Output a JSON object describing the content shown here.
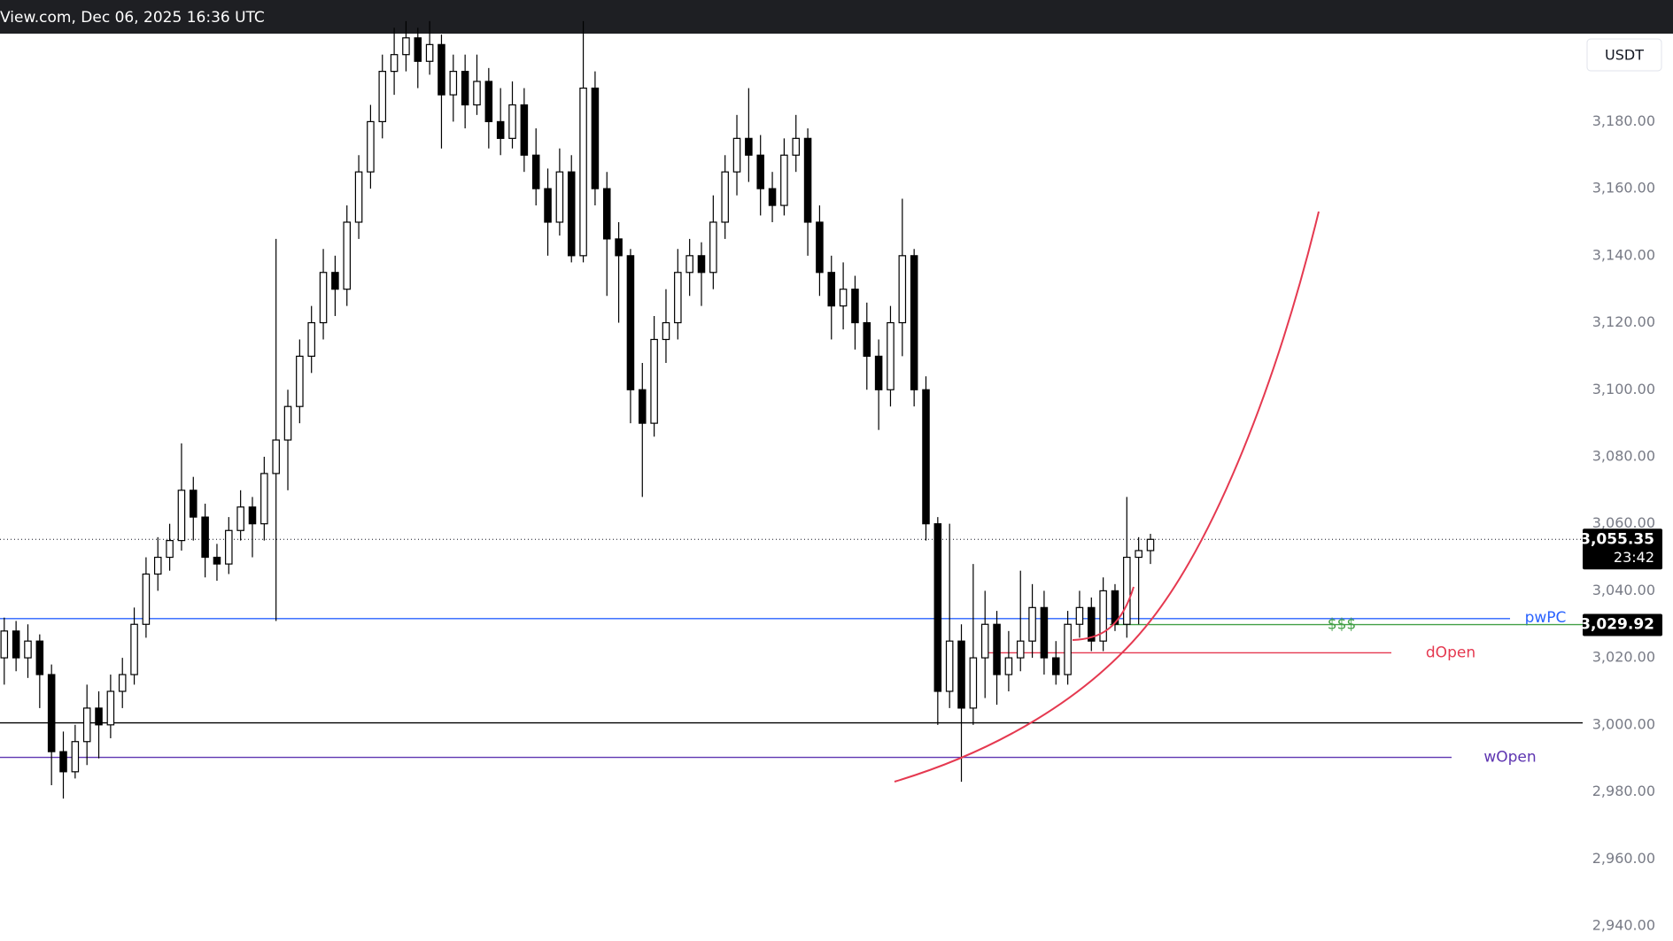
{
  "header": {
    "text": "View.com, Dec 06, 2025 16:36 UTC"
  },
  "currency_button": "USDT",
  "chart_data": {
    "type": "candlestick",
    "ylim": [
      2935.5,
      3206.1
    ],
    "yticks": [
      {
        "value": 2940,
        "label": "2,940.00"
      },
      {
        "value": 2960,
        "label": "2,960.00"
      },
      {
        "value": 2980,
        "label": "2,980.00"
      },
      {
        "value": 3000,
        "label": "3,000.00"
      },
      {
        "value": 3020,
        "label": "3,020.00"
      },
      {
        "value": 3040,
        "label": "3,040.00"
      },
      {
        "value": 3060,
        "label": "3,060.00"
      },
      {
        "value": 3080,
        "label": "3,080.00"
      },
      {
        "value": 3100,
        "label": "3,100.00"
      },
      {
        "value": 3120,
        "label": "3,120.00"
      },
      {
        "value": 3140,
        "label": "3,140.00"
      },
      {
        "value": 3160,
        "label": "3,160.00"
      },
      {
        "value": 3180,
        "label": "3,180.00"
      }
    ],
    "up_color": "#ffffff",
    "down_color": "#000000",
    "ohlc": [
      [
        3020,
        3032,
        3012,
        3028
      ],
      [
        3028,
        3031,
        3016,
        3020
      ],
      [
        3020,
        3030,
        3014,
        3025
      ],
      [
        3025,
        3027,
        3005,
        3015
      ],
      [
        3015,
        3018,
        2982,
        2992
      ],
      [
        2992,
        2998,
        2978,
        2986
      ],
      [
        2986,
        3000,
        2984,
        2995
      ],
      [
        2995,
        3012,
        2988,
        3005
      ],
      [
        3005,
        3010,
        2990,
        3000
      ],
      [
        3000,
        3015,
        2996,
        3010
      ],
      [
        3010,
        3020,
        3005,
        3015
      ],
      [
        3015,
        3035,
        3012,
        3030
      ],
      [
        3030,
        3050,
        3026,
        3045
      ],
      [
        3045,
        3056,
        3040,
        3050
      ],
      [
        3050,
        3060,
        3046,
        3055
      ],
      [
        3055,
        3084,
        3052,
        3070
      ],
      [
        3070,
        3074,
        3055,
        3062
      ],
      [
        3062,
        3066,
        3044,
        3050
      ],
      [
        3050,
        3054,
        3043,
        3048
      ],
      [
        3048,
        3062,
        3045,
        3058
      ],
      [
        3058,
        3070,
        3055,
        3065
      ],
      [
        3065,
        3068,
        3050,
        3060
      ],
      [
        3060,
        3080,
        3055,
        3075
      ],
      [
        3075,
        3145,
        3031,
        3085
      ],
      [
        3085,
        3100,
        3070,
        3095
      ],
      [
        3095,
        3115,
        3090,
        3110
      ],
      [
        3110,
        3125,
        3105,
        3120
      ],
      [
        3120,
        3142,
        3115,
        3135
      ],
      [
        3135,
        3140,
        3122,
        3130
      ],
      [
        3130,
        3155,
        3125,
        3150
      ],
      [
        3150,
        3170,
        3145,
        3165
      ],
      [
        3165,
        3185,
        3160,
        3180
      ],
      [
        3180,
        3200,
        3175,
        3195
      ],
      [
        3195,
        3208,
        3188,
        3200
      ],
      [
        3200,
        3210,
        3195,
        3205
      ],
      [
        3205,
        3208,
        3190,
        3198
      ],
      [
        3198,
        3210,
        3194,
        3203
      ],
      [
        3203,
        3206,
        3172,
        3188
      ],
      [
        3188,
        3200,
        3180,
        3195
      ],
      [
        3195,
        3200,
        3178,
        3185
      ],
      [
        3185,
        3200,
        3182,
        3192
      ],
      [
        3192,
        3196,
        3172,
        3180
      ],
      [
        3180,
        3190,
        3170,
        3175
      ],
      [
        3175,
        3192,
        3172,
        3185
      ],
      [
        3185,
        3190,
        3165,
        3170
      ],
      [
        3170,
        3178,
        3155,
        3160
      ],
      [
        3160,
        3166,
        3140,
        3150
      ],
      [
        3150,
        3172,
        3146,
        3165
      ],
      [
        3165,
        3170,
        3138,
        3140
      ],
      [
        3140,
        3210,
        3138,
        3190
      ],
      [
        3190,
        3195,
        3155,
        3160
      ],
      [
        3160,
        3165,
        3128,
        3145
      ],
      [
        3145,
        3150,
        3120,
        3140
      ],
      [
        3140,
        3142,
        3090,
        3100
      ],
      [
        3100,
        3108,
        3068,
        3090
      ],
      [
        3090,
        3122,
        3086,
        3115
      ],
      [
        3115,
        3130,
        3108,
        3120
      ],
      [
        3120,
        3142,
        3115,
        3135
      ],
      [
        3135,
        3145,
        3128,
        3140
      ],
      [
        3140,
        3144,
        3125,
        3135
      ],
      [
        3135,
        3158,
        3130,
        3150
      ],
      [
        3150,
        3170,
        3145,
        3165
      ],
      [
        3165,
        3182,
        3158,
        3175
      ],
      [
        3175,
        3190,
        3162,
        3170
      ],
      [
        3170,
        3176,
        3152,
        3160
      ],
      [
        3160,
        3165,
        3150,
        3155
      ],
      [
        3155,
        3175,
        3152,
        3170
      ],
      [
        3170,
        3182,
        3165,
        3175
      ],
      [
        3175,
        3178,
        3140,
        3150
      ],
      [
        3150,
        3155,
        3128,
        3135
      ],
      [
        3135,
        3140,
        3115,
        3125
      ],
      [
        3125,
        3138,
        3118,
        3130
      ],
      [
        3130,
        3134,
        3112,
        3120
      ],
      [
        3120,
        3126,
        3100,
        3110
      ],
      [
        3110,
        3115,
        3088,
        3100
      ],
      [
        3100,
        3125,
        3095,
        3120
      ],
      [
        3120,
        3157,
        3110,
        3140
      ],
      [
        3140,
        3142,
        3095,
        3100
      ],
      [
        3100,
        3104,
        3055,
        3060
      ],
      [
        3060,
        3062,
        3000,
        3010
      ],
      [
        3010,
        3060,
        3005,
        3025
      ],
      [
        3025,
        3030,
        2983,
        3005
      ],
      [
        3005,
        3048,
        3000,
        3020
      ],
      [
        3020,
        3040,
        3008,
        3030
      ],
      [
        3030,
        3034,
        3006,
        3015
      ],
      [
        3015,
        3028,
        3010,
        3020
      ],
      [
        3020,
        3046,
        3016,
        3025
      ],
      [
        3025,
        3042,
        3020,
        3035
      ],
      [
        3035,
        3040,
        3015,
        3020
      ],
      [
        3020,
        3025,
        3012,
        3015
      ],
      [
        3015,
        3034,
        3012,
        3030
      ],
      [
        3030,
        3040,
        3026,
        3035
      ],
      [
        3035,
        3038,
        3022,
        3025
      ],
      [
        3025,
        3044,
        3022,
        3040
      ],
      [
        3040,
        3042,
        3028,
        3030
      ],
      [
        3030,
        3068,
        3026,
        3050
      ],
      [
        3050,
        3056,
        3030,
        3052
      ],
      [
        3052,
        3057,
        3048,
        3055.35
      ]
    ],
    "levels": [
      {
        "label": "pwPC",
        "value": 3031.7,
        "color": "#2962ff"
      },
      {
        "label": "$$$",
        "value": 3029.92,
        "color": "#43a047"
      },
      {
        "label": "dOpen",
        "value": 3021.5,
        "color": "#e53950"
      },
      {
        "value": 3000.6,
        "color": "#000000"
      },
      {
        "label": "wOpen",
        "value": 2990.3,
        "color": "#5e35b1"
      }
    ],
    "last_price": {
      "value": 3055.35,
      "label": "3,055.35"
    },
    "countdown": "23:42",
    "marker_price": {
      "value": 3029.92,
      "label": "3,029.92"
    }
  }
}
